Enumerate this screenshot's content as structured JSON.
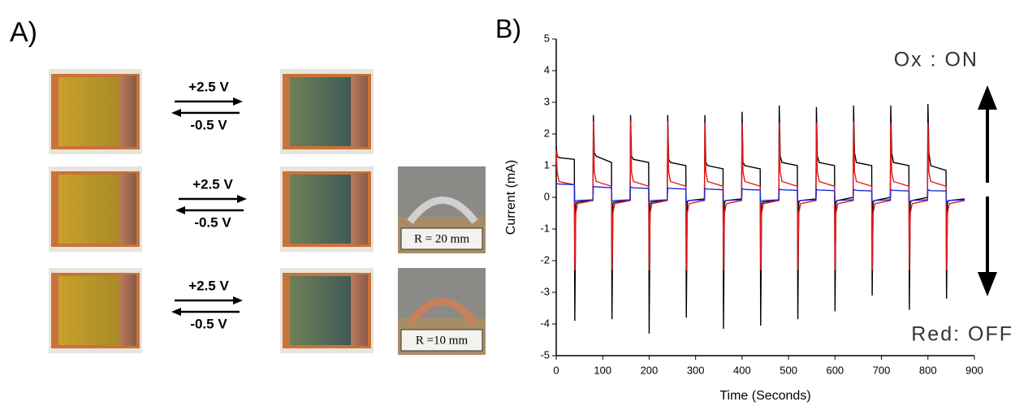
{
  "panel_a": {
    "label": "A)",
    "rows": [
      {
        "forward": "+2.5 V",
        "reverse": "-0.5 V"
      },
      {
        "forward": "+2.5 V",
        "reverse": "-0.5 V"
      },
      {
        "forward": "+2.5 V",
        "reverse": "-0.5 V"
      }
    ],
    "insets": [
      "R = 20 mm",
      "R =10 mm"
    ]
  },
  "chart_data": {
    "type": "line",
    "panel_label": "B)",
    "xlabel": "Time (Seconds)",
    "ylabel": "Current (mA)",
    "annotations": [
      "Ox : ON",
      "Red: OFF"
    ],
    "xlim": [
      0,
      900
    ],
    "xticks": [
      0,
      100,
      200,
      300,
      400,
      500,
      600,
      700,
      800,
      900
    ],
    "ylim": [
      -5,
      5
    ],
    "yticks": [
      -5,
      -4,
      -3,
      -2,
      -1,
      0,
      1,
      2,
      3,
      4,
      5
    ],
    "grid": false,
    "x": [
      0,
      2,
      6,
      39,
      40,
      42,
      46,
      79,
      80,
      82,
      86,
      119,
      120,
      122,
      126,
      159,
      160,
      162,
      166,
      199,
      200,
      202,
      206,
      239,
      240,
      242,
      246,
      279,
      280,
      282,
      286,
      319,
      320,
      322,
      326,
      359,
      360,
      362,
      366,
      399,
      400,
      402,
      406,
      439,
      440,
      442,
      446,
      479,
      480,
      482,
      486,
      519,
      520,
      522,
      526,
      559,
      560,
      562,
      566,
      599,
      600,
      602,
      606,
      639,
      640,
      642,
      646,
      679,
      680,
      682,
      686,
      719,
      720,
      722,
      726,
      759,
      760,
      762,
      766,
      799,
      800,
      802,
      806,
      839,
      840,
      842,
      846,
      879
    ],
    "series": [
      {
        "color": "#000000",
        "values": [
          1.6,
          1.3,
          1.25,
          1.2,
          -3.9,
          -0.2,
          -0.15,
          -0.1,
          2.6,
          1.4,
          1.3,
          1.1,
          -3.85,
          -0.2,
          -0.15,
          -0.1,
          2.6,
          1.3,
          1.2,
          1.1,
          -4.3,
          -0.2,
          -0.15,
          -0.1,
          2.6,
          1.2,
          1.1,
          1.0,
          -3.8,
          -0.15,
          -0.1,
          -0.05,
          2.6,
          1.1,
          1.0,
          0.9,
          -4.15,
          -0.15,
          -0.1,
          -0.05,
          2.7,
          1.1,
          1.0,
          0.9,
          -4.05,
          -0.2,
          -0.15,
          -0.1,
          2.9,
          1.3,
          1.1,
          1.0,
          -3.85,
          -0.15,
          -0.1,
          -0.05,
          2.85,
          1.3,
          1.1,
          1.0,
          -3.6,
          -0.15,
          -0.1,
          0,
          2.9,
          1.4,
          1.1,
          1.0,
          -3.1,
          -0.15,
          -0.1,
          0,
          2.9,
          1.4,
          1.1,
          1.0,
          -3.55,
          -0.15,
          -0.1,
          0,
          2.95,
          1.4,
          1.0,
          0.85,
          -3.2,
          -0.15,
          -0.1,
          -0.05
        ]
      },
      {
        "color": "#e8191c",
        "values": [
          1.5,
          0.8,
          0.5,
          0.4,
          -2.3,
          -0.5,
          -0.2,
          -0.1,
          2.4,
          0.8,
          0.5,
          0.35,
          -2.3,
          -0.5,
          -0.2,
          -0.1,
          2.4,
          0.8,
          0.5,
          0.35,
          -2.3,
          -0.5,
          -0.2,
          -0.1,
          2.4,
          0.8,
          0.5,
          0.35,
          -2.3,
          -0.5,
          -0.2,
          -0.1,
          2.35,
          0.8,
          0.5,
          0.35,
          -2.3,
          -0.5,
          -0.2,
          -0.1,
          2.35,
          0.8,
          0.5,
          0.35,
          -2.3,
          -0.5,
          -0.2,
          -0.1,
          2.35,
          0.8,
          0.5,
          0.35,
          -2.3,
          -0.5,
          -0.2,
          -0.1,
          2.35,
          0.8,
          0.5,
          0.35,
          -2.3,
          -0.5,
          -0.2,
          -0.1,
          2.4,
          0.8,
          0.5,
          0.35,
          -2.3,
          -0.5,
          -0.2,
          -0.1,
          2.35,
          0.8,
          0.5,
          0.35,
          -2.3,
          -0.5,
          -0.2,
          -0.1,
          2.35,
          0.8,
          0.5,
          0.35,
          -2.3,
          -0.5,
          -0.2,
          -0.1
        ]
      },
      {
        "color": "#1f2fd6",
        "values": [
          0.45,
          0.43,
          0.42,
          0.4,
          -0.15,
          -0.12,
          -0.1,
          -0.08,
          0.35,
          0.34,
          0.33,
          0.3,
          -0.15,
          -0.12,
          -0.1,
          -0.08,
          0.33,
          0.32,
          0.3,
          0.28,
          -0.15,
          -0.12,
          -0.1,
          -0.08,
          0.3,
          0.29,
          0.28,
          0.26,
          -0.15,
          -0.12,
          -0.1,
          -0.08,
          0.28,
          0.27,
          0.26,
          0.24,
          -0.15,
          -0.12,
          -0.1,
          -0.08,
          0.27,
          0.26,
          0.25,
          0.23,
          -0.15,
          -0.12,
          -0.1,
          -0.08,
          0.26,
          0.25,
          0.24,
          0.22,
          -0.15,
          -0.12,
          -0.1,
          -0.08,
          0.25,
          0.24,
          0.23,
          0.21,
          -0.15,
          -0.12,
          -0.1,
          -0.08,
          0.25,
          0.24,
          0.22,
          0.2,
          -0.15,
          -0.12,
          -0.1,
          -0.08,
          0.24,
          0.23,
          0.22,
          0.2,
          -0.15,
          -0.12,
          -0.1,
          -0.08,
          0.24,
          0.23,
          0.21,
          0.2,
          -0.15,
          -0.12,
          -0.1,
          -0.08
        ]
      }
    ]
  }
}
